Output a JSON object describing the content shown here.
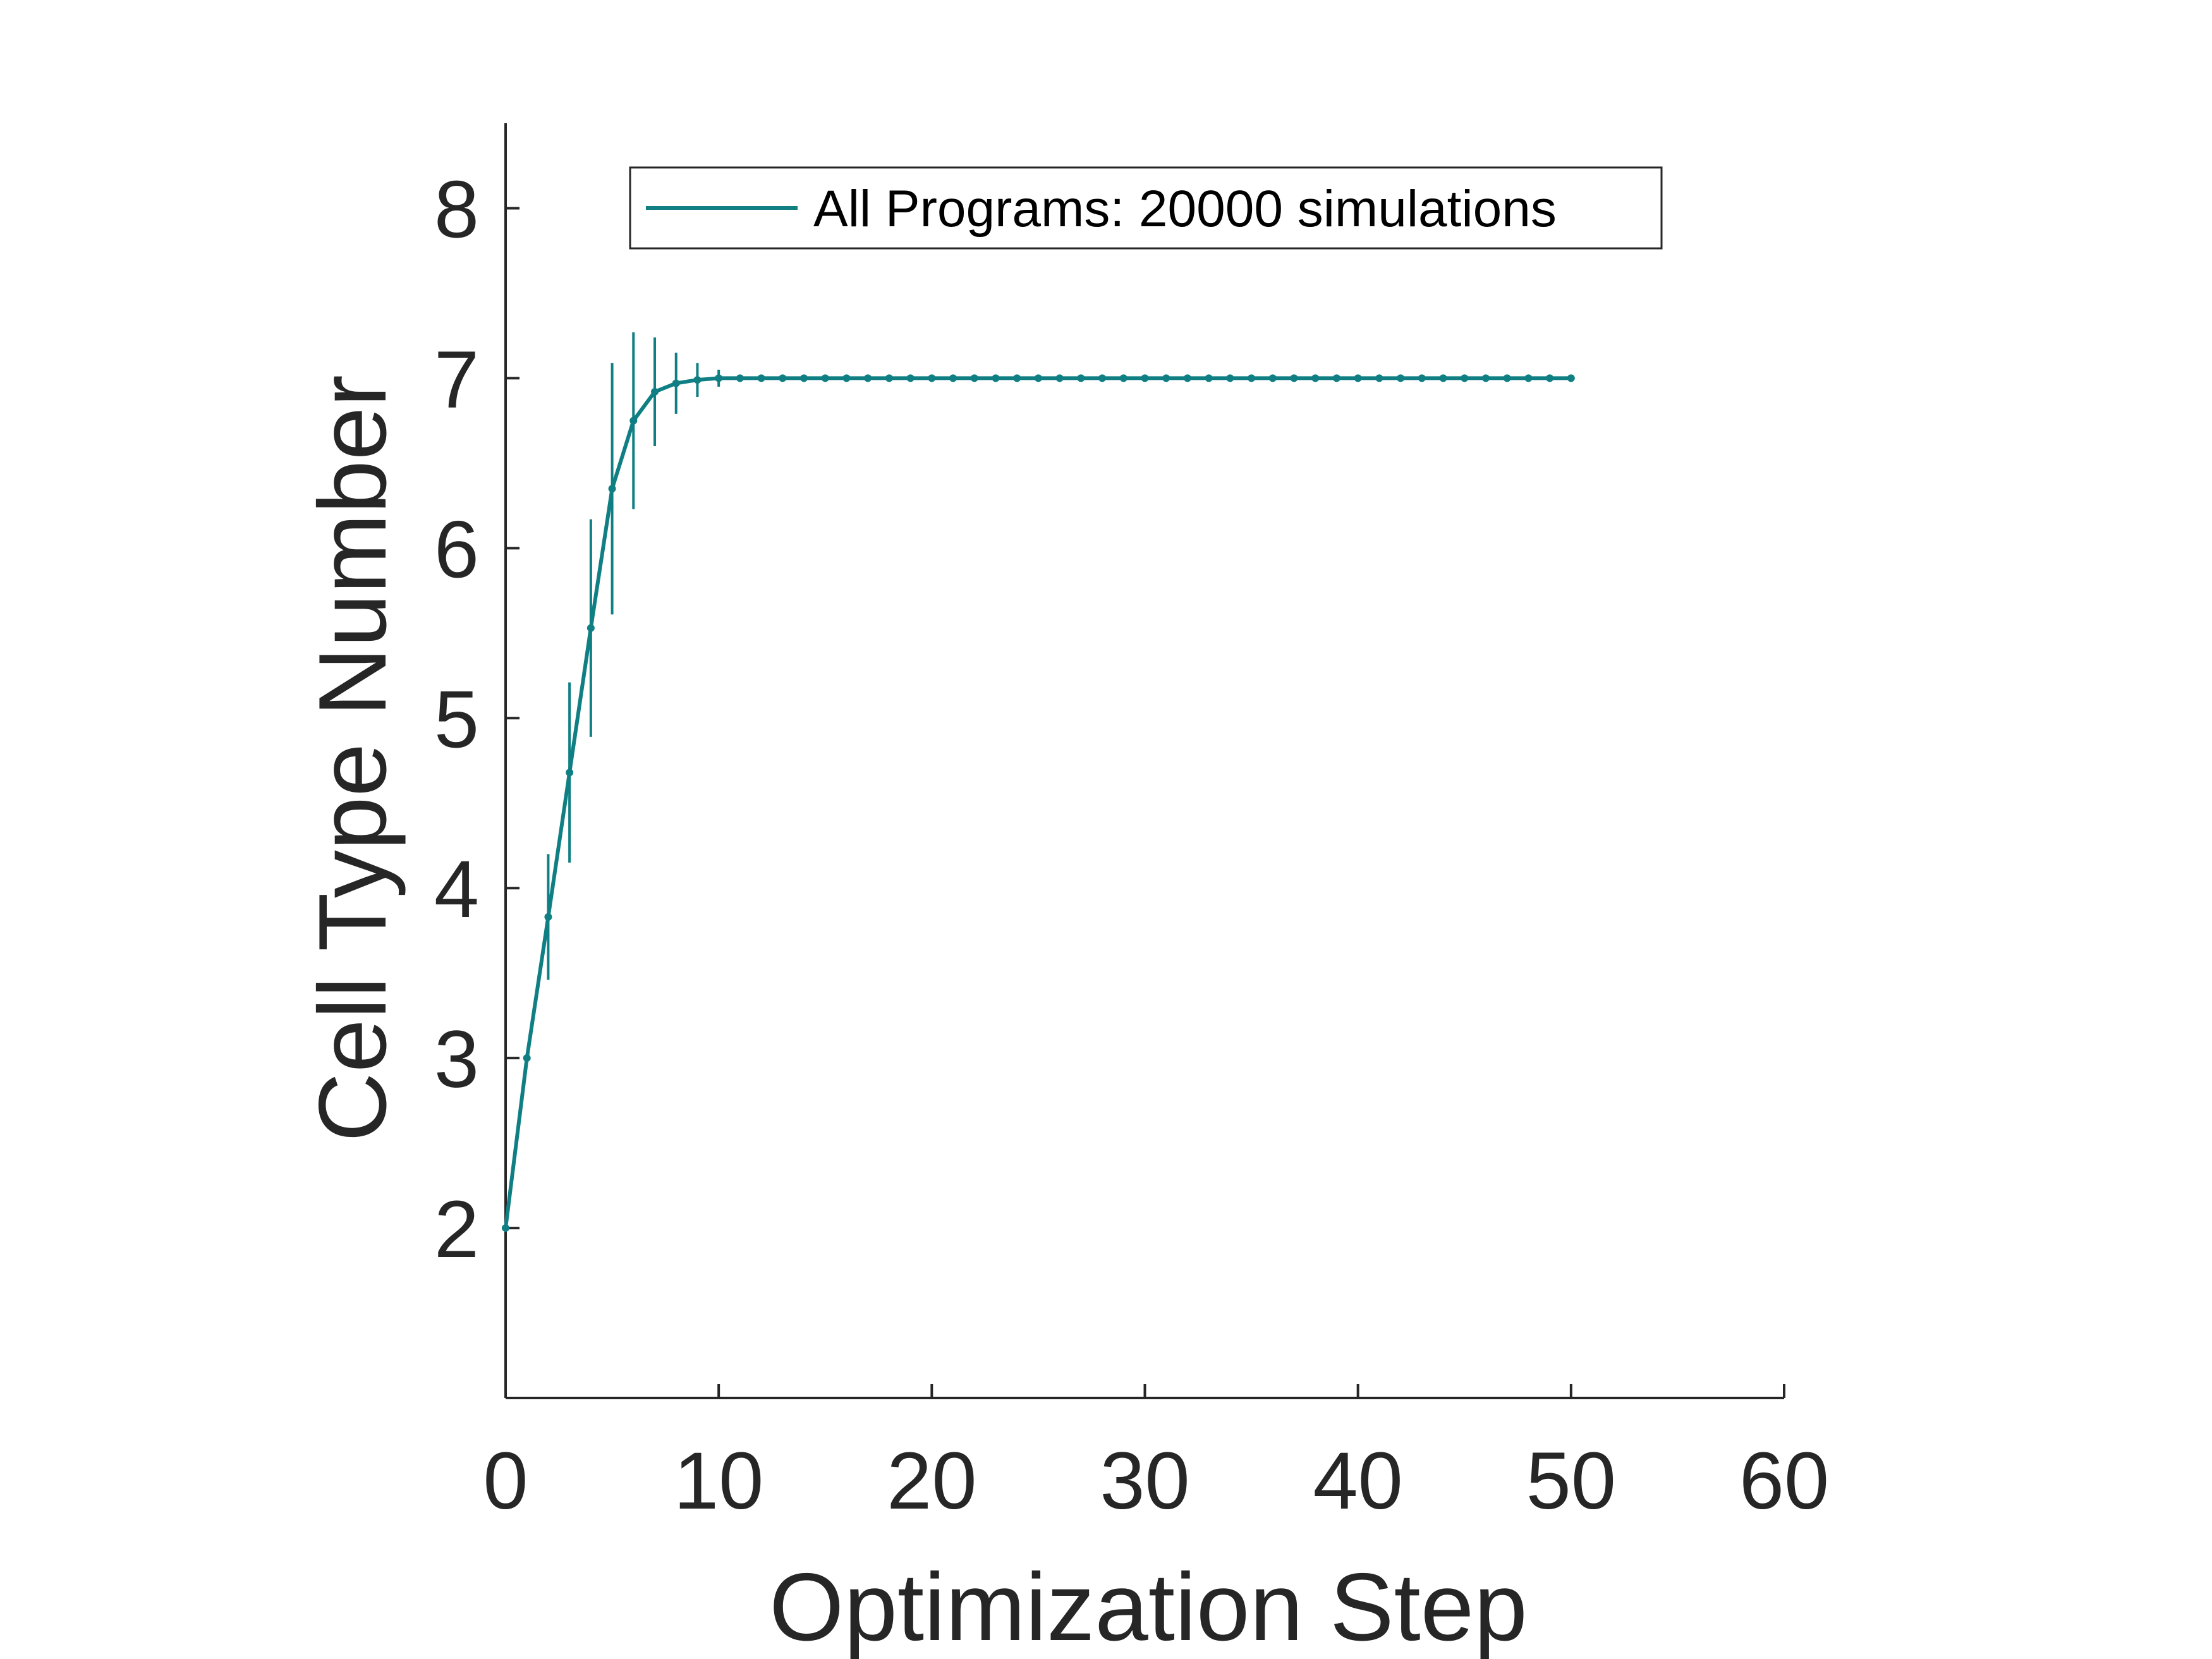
{
  "chart_data": {
    "type": "line",
    "xlabel": "Optimization Step",
    "ylabel": "Cell Type Number",
    "xlim": [
      0,
      60
    ],
    "ylim": [
      1,
      8.5
    ],
    "xticks": [
      0,
      10,
      20,
      30,
      40,
      50,
      60
    ],
    "yticks": [
      2,
      3,
      4,
      5,
      6,
      7,
      8
    ],
    "grid": false,
    "legend_position": "top",
    "series": [
      {
        "name": "All Programs: 20000 simulations",
        "color": "#0f7f84",
        "x": [
          0,
          1,
          2,
          3,
          4,
          5,
          6,
          7,
          8,
          9,
          10,
          11,
          12,
          13,
          14,
          15,
          16,
          17,
          18,
          19,
          20,
          21,
          22,
          23,
          24,
          25,
          26,
          27,
          28,
          29,
          30,
          31,
          32,
          33,
          34,
          35,
          36,
          37,
          38,
          39,
          40,
          41,
          42,
          43,
          44,
          45,
          46,
          47,
          48,
          49,
          50
        ],
        "y": [
          2.0,
          3.0,
          3.83,
          4.68,
          5.53,
          6.35,
          6.75,
          6.92,
          6.97,
          6.99,
          7.0,
          7.0,
          7.0,
          7.0,
          7.0,
          7.0,
          7.0,
          7.0,
          7.0,
          7.0,
          7.0,
          7.0,
          7.0,
          7.0,
          7.0,
          7.0,
          7.0,
          7.0,
          7.0,
          7.0,
          7.0,
          7.0,
          7.0,
          7.0,
          7.0,
          7.0,
          7.0,
          7.0,
          7.0,
          7.0,
          7.0,
          7.0,
          7.0,
          7.0,
          7.0,
          7.0,
          7.0,
          7.0,
          7.0,
          7.0,
          7.0
        ],
        "error": [
          0,
          0,
          0.37,
          0.53,
          0.64,
          0.74,
          0.52,
          0.32,
          0.18,
          0.1,
          0.05,
          0.02,
          0,
          0,
          0,
          0,
          0,
          0,
          0,
          0,
          0,
          0,
          0,
          0,
          0,
          0,
          0,
          0,
          0,
          0,
          0,
          0,
          0,
          0,
          0,
          0,
          0,
          0,
          0,
          0,
          0,
          0,
          0,
          0,
          0,
          0,
          0,
          0,
          0,
          0,
          0
        ]
      }
    ]
  }
}
